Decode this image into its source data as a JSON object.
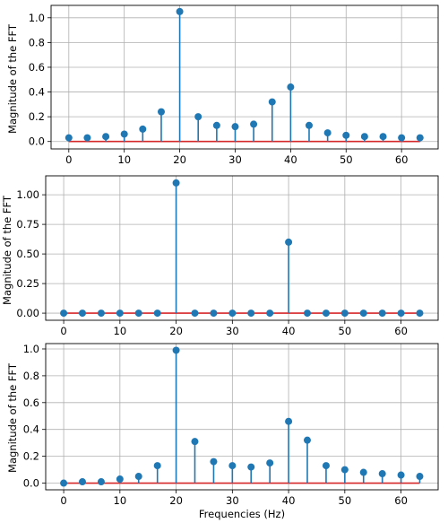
{
  "colors": {
    "stem": "#1f77b4",
    "baseline": "#d62728",
    "grid": "#b0b0b0"
  },
  "chart_data": [
    {
      "type": "stem",
      "ylabel": "Magnitude of the FFT",
      "xlabel": "",
      "xlim": [
        -3.2,
        66.6
      ],
      "ylim": [
        -0.06,
        1.1
      ],
      "grid": true,
      "x_ticks": [
        0,
        10,
        20,
        30,
        40,
        50,
        60
      ],
      "y_ticks": [
        0.0,
        0.2,
        0.4,
        0.6,
        0.8,
        1.0
      ],
      "y_tick_labels": [
        "0.0",
        "0.2",
        "0.4",
        "0.6",
        "0.8",
        "1.0"
      ],
      "x_tick_labels": [
        "0",
        "10",
        "20",
        "30",
        "40",
        "50",
        "60"
      ],
      "x": [
        0,
        3.33,
        6.67,
        10,
        13.33,
        16.67,
        20,
        23.33,
        26.67,
        30,
        33.33,
        36.67,
        40,
        43.33,
        46.67,
        50,
        53.33,
        56.67,
        60,
        63.33
      ],
      "values": [
        0.03,
        0.03,
        0.04,
        0.06,
        0.1,
        0.24,
        1.05,
        0.2,
        0.13,
        0.12,
        0.14,
        0.32,
        0.44,
        0.13,
        0.07,
        0.05,
        0.04,
        0.04,
        0.03,
        0.03
      ]
    },
    {
      "type": "stem",
      "ylabel": "Magnitude of the FFT",
      "xlabel": "",
      "xlim": [
        -3.2,
        66.6
      ],
      "ylim": [
        -0.06,
        1.16
      ],
      "grid": true,
      "x_ticks": [
        0,
        10,
        20,
        30,
        40,
        50,
        60
      ],
      "y_ticks": [
        0.0,
        0.25,
        0.5,
        0.75,
        1.0
      ],
      "y_tick_labels": [
        "0.00",
        "0.25",
        "0.50",
        "0.75",
        "1.00"
      ],
      "x_tick_labels": [
        "0",
        "10",
        "20",
        "30",
        "40",
        "50",
        "60"
      ],
      "x": [
        0,
        3.33,
        6.67,
        10,
        13.33,
        16.67,
        20,
        23.33,
        26.67,
        30,
        33.33,
        36.67,
        40,
        43.33,
        46.67,
        50,
        53.33,
        56.67,
        60,
        63.33
      ],
      "values": [
        0,
        0,
        0,
        0,
        0,
        0,
        1.1,
        0,
        0,
        0,
        0,
        0,
        0.6,
        0,
        0,
        0,
        0,
        0,
        0,
        0
      ]
    },
    {
      "type": "stem",
      "ylabel": "Magnitude of the FFT",
      "xlabel": "Frequencies (Hz)",
      "xlim": [
        -3.2,
        66.6
      ],
      "ylim": [
        -0.05,
        1.04
      ],
      "grid": true,
      "x_ticks": [
        0,
        10,
        20,
        30,
        40,
        50,
        60
      ],
      "y_ticks": [
        0.0,
        0.2,
        0.4,
        0.6,
        0.8,
        1.0
      ],
      "y_tick_labels": [
        "0.0",
        "0.2",
        "0.4",
        "0.6",
        "0.8",
        "1.0"
      ],
      "x_tick_labels": [
        "0",
        "10",
        "20",
        "30",
        "40",
        "50",
        "60"
      ],
      "x": [
        0,
        3.33,
        6.67,
        10,
        13.33,
        16.67,
        20,
        23.33,
        26.67,
        30,
        33.33,
        36.67,
        40,
        43.33,
        46.67,
        50,
        53.33,
        56.67,
        60,
        63.33
      ],
      "values": [
        0.0,
        0.01,
        0.01,
        0.03,
        0.05,
        0.13,
        0.99,
        0.31,
        0.16,
        0.13,
        0.12,
        0.15,
        0.46,
        0.32,
        0.13,
        0.1,
        0.08,
        0.07,
        0.06,
        0.05
      ]
    }
  ]
}
